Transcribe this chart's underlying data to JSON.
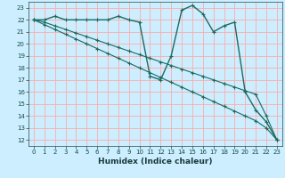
{
  "xlabel": "Humidex (Indice chaleur)",
  "bg_color": "#cceeff",
  "grid_color": "#ffaaaa",
  "line_color": "#1a6b60",
  "xlim": [
    -0.5,
    23.5
  ],
  "ylim": [
    11.5,
    23.5
  ],
  "xticks": [
    0,
    1,
    2,
    3,
    4,
    5,
    6,
    7,
    8,
    9,
    10,
    11,
    12,
    13,
    14,
    15,
    16,
    17,
    18,
    19,
    20,
    21,
    22,
    23
  ],
  "yticks": [
    12,
    13,
    14,
    15,
    16,
    17,
    18,
    19,
    20,
    21,
    22,
    23
  ],
  "line1_x": [
    0,
    1,
    2,
    3,
    4,
    5,
    6,
    7,
    8,
    9,
    10,
    11,
    12,
    13,
    14,
    15,
    16,
    17,
    18,
    19,
    20,
    21,
    22,
    23
  ],
  "line1_y": [
    22,
    22,
    22.3,
    22,
    22,
    22,
    22,
    22,
    22.3,
    22,
    21.8,
    17.3,
    17.0,
    19.0,
    22.8,
    23.2,
    22.5,
    21.0,
    21.5,
    21.8,
    16.0,
    14.5,
    13.5,
    12.0
  ],
  "line2_x": [
    0,
    1,
    2,
    3,
    4,
    5,
    6,
    7,
    8,
    9,
    10,
    11,
    12,
    13,
    14,
    15,
    16,
    17,
    18,
    19,
    20,
    21,
    22,
    23
  ],
  "line2_y": [
    22.0,
    21.8,
    21.5,
    21.2,
    20.9,
    20.6,
    20.3,
    20.0,
    19.7,
    19.4,
    19.1,
    18.8,
    18.5,
    18.2,
    17.9,
    17.6,
    17.3,
    17.0,
    16.7,
    16.4,
    16.1,
    15.8,
    14.0,
    12.0
  ],
  "line3_x": [
    0,
    1,
    2,
    3,
    4,
    5,
    6,
    7,
    8,
    9,
    10,
    11,
    12,
    13,
    14,
    15,
    16,
    17,
    18,
    19,
    20,
    21,
    22,
    23
  ],
  "line3_y": [
    22.0,
    21.6,
    21.2,
    20.8,
    20.4,
    20.0,
    19.6,
    19.2,
    18.8,
    18.4,
    18.0,
    17.6,
    17.2,
    16.8,
    16.4,
    16.0,
    15.6,
    15.2,
    14.8,
    14.4,
    14.0,
    13.6,
    13.0,
    12.0
  ]
}
